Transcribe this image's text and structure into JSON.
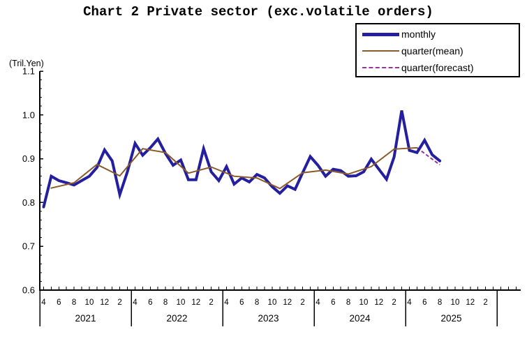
{
  "title": "Chart 2 Private sector (exc.volatile orders)",
  "y_axis": {
    "unit_label": "(Tril.Yen)",
    "tick_labels": [
      "1.1",
      "1.0",
      "0.9",
      "0.8",
      "0.7",
      "0.6"
    ],
    "min": 0.6,
    "max": 1.1,
    "major_step": 0.1,
    "minor_step": 0.02
  },
  "x_axis": {
    "month_labels_per_year": [
      "4",
      "6",
      "8",
      "10",
      "12",
      "2"
    ],
    "years": [
      "2021",
      "2022",
      "2023",
      "2024",
      "2025"
    ]
  },
  "legend": {
    "items": [
      {
        "label": "monthly",
        "color": "#231f9e",
        "style": "solid",
        "thickness": 5
      },
      {
        "label": "quarter(mean)",
        "color": "#8a5a28",
        "style": "solid",
        "thickness": 2
      },
      {
        "label": "quarter(forecast)",
        "color": "#993399",
        "style": "dashed",
        "thickness": 2
      }
    ]
  },
  "chart_data": {
    "type": "line",
    "title": "Chart 2 Private sector (exc.volatile orders)",
    "ylabel": "(Tril.Yen)",
    "ylim": [
      0.6,
      1.1
    ],
    "grid": false,
    "legend_position": "top-right",
    "x_unit": "month",
    "x_start_month": "2021-04",
    "x_end_month": "2025-08",
    "series": [
      {
        "name": "monthly",
        "color": "#231f9e",
        "style": "solid",
        "start_offset": 0,
        "values": [
          0.79,
          0.86,
          0.85,
          0.845,
          0.84,
          0.85,
          0.86,
          0.88,
          0.92,
          0.895,
          0.818,
          0.87,
          0.935,
          0.908,
          0.925,
          0.945,
          0.912,
          0.885,
          0.897,
          0.852,
          0.852,
          0.923,
          0.87,
          0.85,
          0.882,
          0.842,
          0.856,
          0.847,
          0.864,
          0.856,
          0.836,
          0.821,
          0.838,
          0.83,
          0.868,
          0.905,
          0.885,
          0.86,
          0.876,
          0.873,
          0.86,
          0.861,
          0.87,
          0.899,
          0.876,
          0.853,
          0.904,
          1.01,
          0.919,
          0.914,
          0.942,
          0.909,
          0.895
        ]
      },
      {
        "name": "quarter(mean)",
        "color": "#8a5a28",
        "style": "solid",
        "month_offsets": [
          1,
          4,
          7,
          10,
          13,
          16,
          19,
          22,
          25,
          28,
          31,
          34,
          37,
          40,
          43,
          46,
          49
        ],
        "values": [
          0.833,
          0.845,
          0.887,
          0.861,
          0.923,
          0.914,
          0.867,
          0.881,
          0.86,
          0.856,
          0.832,
          0.868,
          0.874,
          0.865,
          0.882,
          0.922,
          0.925
        ]
      },
      {
        "name": "quarter(forecast)",
        "color": "#993399",
        "style": "dashed",
        "month_offsets": [
          49,
          52
        ],
        "values": [
          0.925,
          0.886
        ]
      }
    ]
  }
}
